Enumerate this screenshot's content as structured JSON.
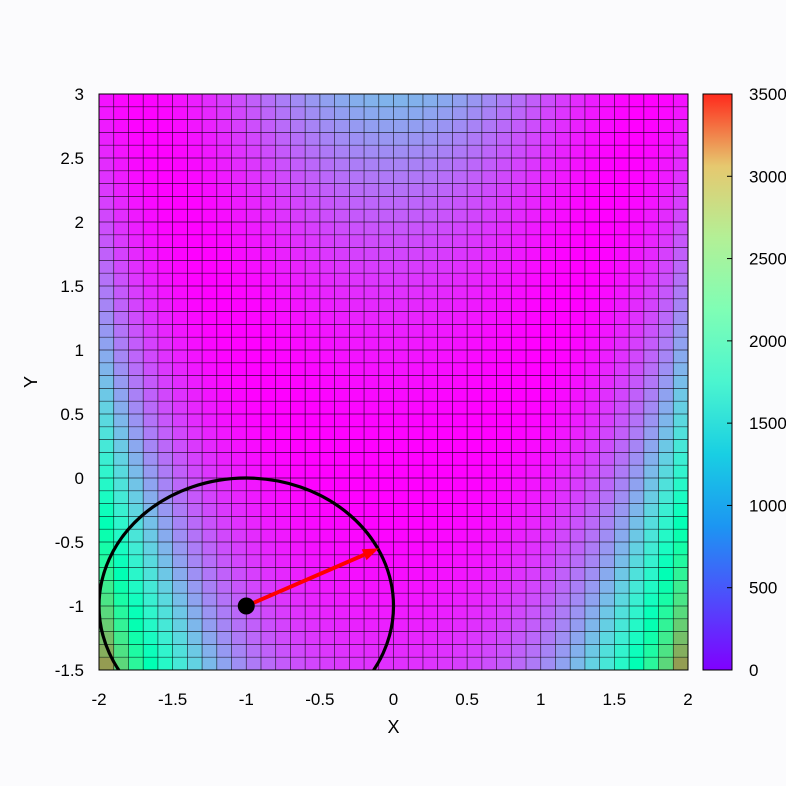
{
  "chart_data": {
    "type": "heatmap",
    "title": "",
    "xlabel": "X",
    "ylabel": "Y",
    "xlim": [
      -2,
      2
    ],
    "ylim": [
      -1.5,
      3
    ],
    "x_ticks": [
      "-2",
      "-1.5",
      "-1",
      "-0.5",
      "0",
      "0.5",
      "1",
      "1.5",
      "2"
    ],
    "y_ticks": [
      "-1.5",
      "-1",
      "-0.5",
      "0",
      "0.5",
      "1",
      "1.5",
      "2",
      "2.5",
      "3"
    ],
    "colorbar": {
      "range": [
        0,
        3500
      ],
      "ticks": [
        "0",
        "500",
        "1000",
        "1500",
        "2000",
        "2500",
        "3000",
        "3500"
      ],
      "colormap": "rainbow"
    },
    "surface": {
      "function": "(1 - x)^2 + 100 * (y - x^2)^2",
      "grid_cells_x": 40,
      "grid_cells_y": 45
    },
    "circle": {
      "center": [
        -1,
        -1
      ],
      "radius": 1
    },
    "point": {
      "x": -1,
      "y": -1
    },
    "arrow": {
      "from": [
        -1,
        -1
      ],
      "to": [
        -0.1,
        -0.55
      ]
    },
    "colors": {
      "grid_line": "#000000",
      "circle": "#000000",
      "point": "#000000",
      "arrow": "#ff0000"
    }
  }
}
